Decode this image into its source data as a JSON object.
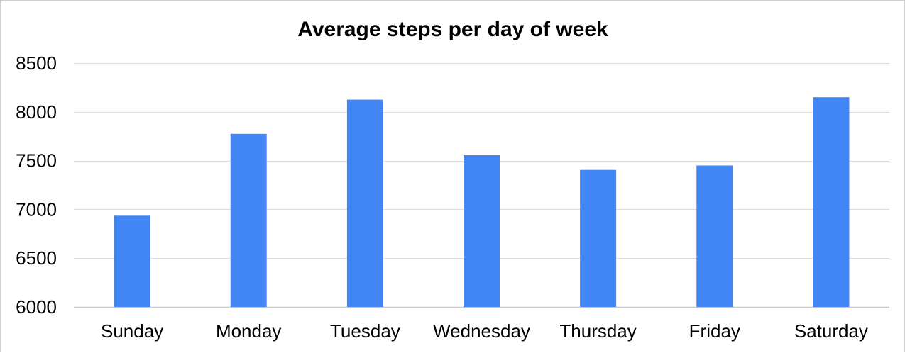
{
  "chart_data": {
    "type": "bar",
    "title": "Average steps per day of week",
    "xlabel": "",
    "ylabel": "",
    "categories": [
      "Sunday",
      "Monday",
      "Tuesday",
      "Wednesday",
      "Thursday",
      "Friday",
      "Saturday"
    ],
    "values": [
      6935,
      7775,
      8125,
      7555,
      7405,
      7450,
      8150
    ],
    "ylim": [
      6000,
      8500
    ],
    "yticks": [
      6000,
      6500,
      7000,
      7500,
      8000,
      8500
    ],
    "ytick_labels": [
      "6000",
      "6500",
      "7000",
      "7500",
      "8000",
      "8500"
    ],
    "grid": true,
    "legend": "none",
    "colors": {
      "bar": "#4285f4",
      "grid": "#dcdcdc",
      "axis": "#c8c8c8"
    }
  }
}
